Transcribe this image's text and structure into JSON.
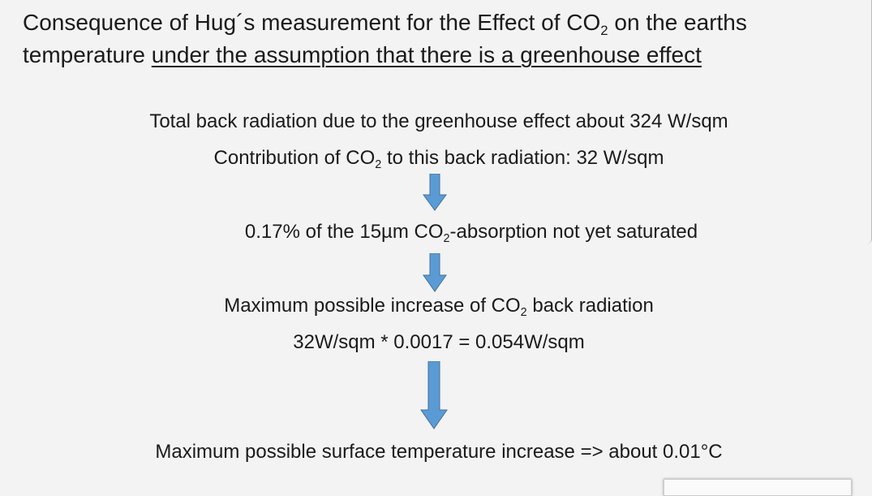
{
  "title": {
    "line1": [
      "Consequence of Hug´s measurement for the Effect of CO",
      "2",
      " on the earths"
    ],
    "line2": [
      "temperature ",
      "under the assumption that there is a greenhouse effect"
    ]
  },
  "body": {
    "line1": "Total back radiation due to the greenhouse effect about 324 W/sqm",
    "line2": [
      "Contribution of CO",
      "2",
      " to this back radiation: 32 W/sqm"
    ],
    "line3": [
      "0.17% of the 15µm CO",
      "2",
      "-absorption not yet saturated"
    ],
    "line4": [
      "Maximum possible increase of CO",
      "2",
      " back radiation"
    ],
    "line5": "32W/sqm * 0.0017 = 0.054W/sqm",
    "line6": "Maximum possible surface temperature increase => about 0.01°C"
  }
}
